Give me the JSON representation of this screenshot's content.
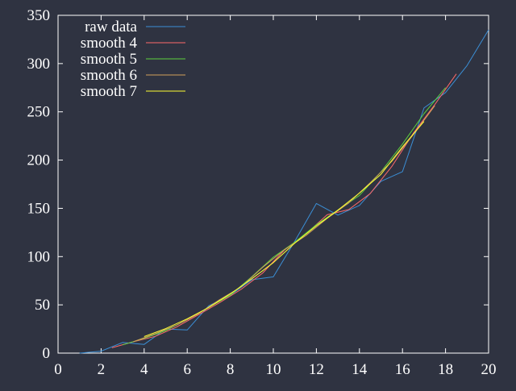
{
  "chart_data": {
    "type": "line",
    "title": "",
    "xlabel": "",
    "ylabel": "",
    "xlim": [
      0,
      20
    ],
    "ylim": [
      0,
      350
    ],
    "x_ticks": [
      "0",
      "2",
      "4",
      "6",
      "8",
      "10",
      "12",
      "14",
      "16",
      "18",
      "20"
    ],
    "y_ticks": [
      "0",
      "50",
      "100",
      "150",
      "200",
      "250",
      "300",
      "350"
    ],
    "grid": false,
    "legend_position": "top-left",
    "colors": {
      "background": "#2f3341",
      "axis": "#ffffff",
      "text": "#ffffff"
    },
    "series": [
      {
        "name": "raw data",
        "color": "#3b8fd6",
        "x": [
          1,
          2,
          3,
          4,
          5,
          6,
          7,
          8,
          9,
          10,
          11,
          12,
          13,
          14,
          15,
          16,
          17,
          18,
          19,
          20
        ],
        "y": [
          0,
          2,
          11,
          9,
          25,
          24,
          49,
          60,
          76,
          79,
          116,
          155,
          143,
          153,
          178,
          188,
          254,
          270,
          298,
          335
        ]
      },
      {
        "name": "smooth 4",
        "color": "#ff6a6a",
        "x": [
          2.5,
          3.5,
          4.5,
          5.5,
          6.5,
          7.5,
          8.5,
          9.5,
          10.5,
          11.5,
          12.5,
          13.5,
          14.5,
          15.5,
          16.5,
          17.5,
          18.5
        ],
        "y": [
          5.5,
          11.8,
          17.3,
          27.0,
          39.5,
          52.3,
          66.0,
          82.8,
          106.5,
          123.3,
          143.3,
          148.7,
          165.2,
          193.3,
          227.5,
          257.5,
          289.3
        ]
      },
      {
        "name": "smooth 5",
        "color": "#5dd13d",
        "x": [
          3,
          4,
          5,
          6,
          7,
          8,
          9,
          10,
          11,
          12,
          13,
          14,
          15,
          16,
          17,
          18
        ],
        "y": [
          8.5,
          15.3,
          23.3,
          34.6,
          47.4,
          60.0,
          79.2,
          99.4,
          115.0,
          133.0,
          148.2,
          163.4,
          187.8,
          216.6,
          248.1,
          275.1
        ]
      },
      {
        "name": "smooth 6",
        "color": "#d0a25a",
        "x": [
          3.5,
          4.5,
          5.5,
          6.5,
          7.5,
          8.5,
          9.5,
          10.5,
          11.5,
          12.5,
          13.5,
          14.5,
          15.5,
          16.5,
          17.5
        ],
        "y": [
          11.8,
          20.0,
          29.0,
          40.5,
          55.3,
          68.5,
          88.8,
          106.8,
          121.5,
          139.7,
          155.5,
          176.5,
          198.6,
          226.2,
          256.4
        ]
      },
      {
        "name": "smooth 7",
        "color": "#ffff33",
        "x": [
          4,
          5,
          6,
          7,
          8,
          9,
          10,
          11,
          12,
          13,
          14,
          15,
          16,
          17
        ],
        "y": [
          17.1,
          25.4,
          35.6,
          47.3,
          61.3,
          77.0,
          93.7,
          114.0,
          132.0,
          148.1,
          165.8,
          185.3,
          213.7,
          240.0
        ]
      }
    ]
  }
}
